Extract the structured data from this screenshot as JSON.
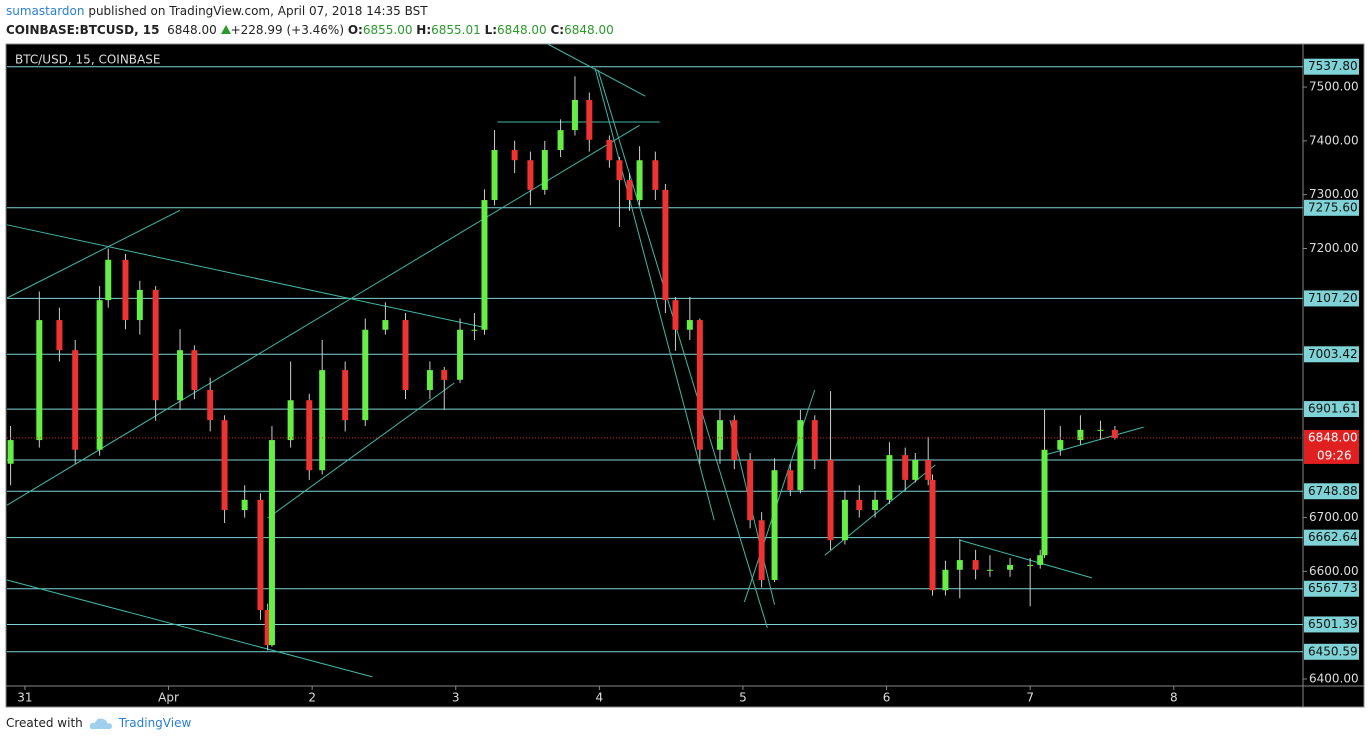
{
  "header": {
    "author": "sumastardon",
    "published": "published on TradingView.com, April 07, 2018 14:35 BST",
    "symbol": "COINBASE:BTCUSD, 15",
    "last": "6848.00",
    "change": "+228.99 (+3.46%)",
    "open_label": "O:",
    "open": "6855.00",
    "high_label": "H:",
    "high": "6855.01",
    "low_label": "L:",
    "low": "6848.00",
    "close_label": "C:",
    "close": "6848.00"
  },
  "footer": {
    "created": "Created with",
    "brand": "TradingView"
  },
  "chart_data": {
    "type": "candlestick",
    "title": "BTC/USD, 15, COINBASE",
    "xlim": [
      -0.125,
      8.9
    ],
    "ylim": [
      6387,
      7580
    ],
    "xticks": [
      {
        "value": 0,
        "label": "31"
      },
      {
        "value": 1,
        "label": "Apr"
      },
      2,
      3,
      4,
      5,
      6,
      7,
      8
    ],
    "yticks": [
      {
        "value": 7500,
        "label": "7500.00"
      },
      {
        "value": 7400,
        "label": "7400.00"
      },
      {
        "value": 7300,
        "label": "7300.00"
      },
      {
        "value": 7200,
        "label": "7200.00"
      },
      {
        "value": 6700,
        "label": "6700.00"
      },
      {
        "value": 6600,
        "label": "6600.00"
      },
      {
        "value": 6400,
        "label": "6400.00"
      }
    ],
    "up_color": "#66ee44",
    "down_color": "#ee3333",
    "wick_color": "#cccccc",
    "x": [
      -0.1,
      0.1,
      0.24,
      0.35,
      0.52,
      0.58,
      0.7,
      0.8,
      0.91,
      1.08,
      1.18,
      1.29,
      1.39,
      1.53,
      1.64,
      1.69,
      1.72,
      1.85,
      1.98,
      2.07,
      2.23,
      2.37,
      2.51,
      2.65,
      2.82,
      2.92,
      3.03,
      3.13,
      3.2,
      3.27,
      3.41,
      3.52,
      3.62,
      3.73,
      3.83,
      3.93,
      4.07,
      4.14,
      4.21,
      4.28,
      4.39,
      4.46,
      4.53,
      4.63,
      4.7,
      4.84,
      4.94,
      5.05,
      5.13,
      5.22,
      5.33,
      5.4,
      5.5,
      5.61,
      5.71,
      5.81,
      5.92,
      6.02,
      6.13,
      6.2,
      6.29,
      6.32,
      6.41,
      6.51,
      6.62,
      6.72,
      6.86,
      7.0,
      7.07,
      7.1,
      7.21,
      7.35,
      7.49,
      7.59
    ],
    "open": [
      6800,
      6844,
      7067,
      7011,
      6826,
      7104,
      7179,
      7067,
      7123,
      6918,
      7011,
      6937,
      6881,
      6714,
      6733,
      6528,
      6463,
      6844,
      6918,
      6788,
      6974,
      6881,
      7049,
      7067,
      6937,
      6974,
      6956,
      7049,
      7049,
      7290,
      7383,
      7364,
      7309,
      7383,
      7420,
      7476,
      7402,
      7364,
      7327,
      7290,
      7364,
      7309,
      7104,
      7049,
      7067,
      6826,
      6881,
      6807,
      6695,
      6584,
      6788,
      6751,
      6881,
      6807,
      6658,
      6733,
      6714,
      6733,
      6816,
      6770,
      6807,
      6770,
      6565,
      6603,
      6621,
      6603,
      6603,
      6612,
      6612,
      6630,
      6826,
      6844,
      6863,
      6863
    ],
    "high": [
      6870,
      7120,
      7090,
      7030,
      7130,
      7200,
      7190,
      7140,
      7130,
      7050,
      7020,
      6960,
      6890,
      6760,
      6745,
      6540,
      6870,
      6990,
      6930,
      7030,
      6990,
      7070,
      7100,
      7080,
      6990,
      6980,
      7070,
      7080,
      7310,
      7420,
      7400,
      7380,
      7400,
      7440,
      7520,
      7490,
      7410,
      7370,
      7340,
      7390,
      7380,
      7320,
      7110,
      7110,
      7070,
      6900,
      6890,
      6820,
      6710,
      6810,
      6800,
      6900,
      6890,
      6935,
      6750,
      6760,
      6750,
      6840,
      6830,
      6820,
      6850,
      6780,
      6620,
      6660,
      6640,
      6630,
      6625,
      6625,
      6640,
      6900,
      6870,
      6890,
      6880,
      6870
    ],
    "low": [
      6760,
      6830,
      6990,
      6800,
      6815,
      7090,
      7050,
      7040,
      6880,
      6900,
      6920,
      6860,
      6690,
      6700,
      6510,
      6453,
      6460,
      6830,
      6770,
      6780,
      6860,
      6870,
      7040,
      6920,
      6920,
      6900,
      6950,
      7030,
      7040,
      7280,
      7340,
      7280,
      7300,
      7370,
      7410,
      7380,
      7350,
      7240,
      7270,
      7280,
      7290,
      7080,
      7010,
      7030,
      6800,
      6800,
      6790,
      6680,
      6570,
      6580,
      6740,
      6745,
      6790,
      6640,
      6650,
      6700,
      6700,
      6725,
      6750,
      6765,
      6760,
      6555,
      6555,
      6550,
      6585,
      6590,
      6590,
      6535,
      6605,
      6625,
      6815,
      6835,
      6845,
      6845
    ],
    "close": [
      6844,
      7067,
      7011,
      6826,
      7104,
      7179,
      7067,
      7123,
      6918,
      7011,
      6937,
      6881,
      6714,
      6733,
      6528,
      6463,
      6844,
      6918,
      6788,
      6974,
      6881,
      7049,
      7067,
      6937,
      6974,
      6956,
      7049,
      7049,
      7290,
      7383,
      7364,
      7309,
      7383,
      7420,
      7476,
      7402,
      7364,
      7327,
      7290,
      7364,
      7309,
      7104,
      7049,
      7067,
      6826,
      6881,
      6807,
      6695,
      6584,
      6788,
      6751,
      6881,
      6807,
      6658,
      6733,
      6714,
      6733,
      6816,
      6770,
      6807,
      6770,
      6565,
      6603,
      6621,
      6603,
      6603,
      6612,
      6612,
      6630,
      6826,
      6844,
      6863,
      6863,
      6848
    ],
    "level_color": "#7fd3d6",
    "levels": [
      {
        "value": 7537.8,
        "label": "7537.80"
      },
      {
        "value": 7275.6,
        "label": "7275.60"
      },
      {
        "value": 7107.2,
        "label": "7107.20"
      },
      {
        "value": 7003.42,
        "label": "7003.42"
      },
      {
        "value": 6901.61,
        "label": "6901.61"
      },
      6807,
      {
        "value": 6748.88,
        "label": "6748.88"
      },
      {
        "value": 6662.64,
        "label": "6662.64"
      },
      {
        "value": 6567.73,
        "label": "6567.73"
      },
      {
        "value": 6501.39,
        "label": "6501.39"
      },
      {
        "value": 6450.59,
        "label": "6450.59"
      }
    ],
    "current": {
      "value": 6848,
      "label": "6848.00",
      "countdown": "09:26",
      "color": "#e02020"
    },
    "trendline_color": "#3fb8a8",
    "trendlines": [
      [
        -0.125,
        7244,
        3.22,
        7052
      ],
      [
        -0.125,
        7108,
        1.08,
        7271
      ],
      [
        -0.125,
        6723,
        4.28,
        7429
      ],
      [
        1.69,
        6699,
        2.99,
        6950
      ],
      [
        -0.125,
        6584,
        2.42,
        6404
      ],
      [
        3.64,
        7580,
        4.32,
        7483
      ],
      [
        3.97,
        7535,
        4.8,
        6695
      ],
      [
        3.99,
        7532,
        5.17,
        6495
      ],
      [
        3.29,
        7435,
        4.42,
        7435
      ],
      [
        5.01,
        6543,
        5.5,
        6937
      ],
      [
        5.57,
        6630,
        6.34,
        6798
      ],
      [
        6.51,
        6658,
        7.43,
        6588
      ],
      [
        7.1,
        6816,
        7.79,
        6868
      ],
      [
        4.91,
        6881,
        5.22,
        6538
      ]
    ]
  }
}
